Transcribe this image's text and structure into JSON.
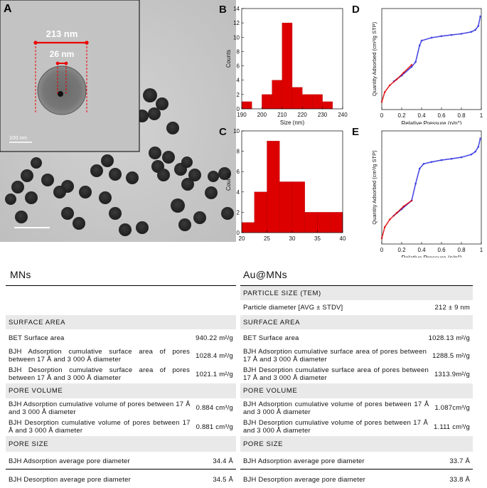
{
  "panels": {
    "A": "A",
    "B": "B",
    "C": "C",
    "D": "D",
    "E": "E"
  },
  "tem": {
    "outer_diameter": "213 nm",
    "inner_diameter": "26 nm",
    "scale_label": "100  nm"
  },
  "chart_data": [
    {
      "type": "bar",
      "panel": "B",
      "xlabel": "Size (nm)",
      "ylabel": "Counts",
      "xlim": [
        190,
        240
      ],
      "ylim": [
        0,
        14
      ],
      "xticks": [
        "190",
        "200",
        "210",
        "220",
        "230",
        "240"
      ],
      "yticks": [
        "0",
        "2",
        "4",
        "6",
        "8",
        "10",
        "12",
        "14"
      ],
      "bins": [
        [
          190,
          195
        ],
        [
          200,
          205
        ],
        [
          205,
          210
        ],
        [
          210,
          215
        ],
        [
          215,
          220
        ],
        [
          220,
          225
        ],
        [
          225,
          230
        ],
        [
          230,
          235
        ]
      ],
      "values": [
        1,
        2,
        4,
        12,
        3,
        2,
        2,
        1
      ],
      "color": "#dd0000"
    },
    {
      "type": "bar",
      "panel": "C",
      "xlabel": "Size (nm)",
      "ylabel": "Counts",
      "xlim": [
        20,
        40
      ],
      "ylim": [
        0,
        10
      ],
      "xticks": [
        "20",
        "25",
        "30",
        "35",
        "40"
      ],
      "yticks": [
        "0",
        "2",
        "4",
        "6",
        "8",
        "10"
      ],
      "bins": [
        [
          20,
          22.5
        ],
        [
          22.5,
          25
        ],
        [
          25,
          27.5
        ],
        [
          27.5,
          30
        ],
        [
          30,
          32.5
        ],
        [
          32.5,
          35
        ],
        [
          35,
          37.5
        ],
        [
          37.5,
          40
        ]
      ],
      "values": [
        1,
        4,
        9,
        5,
        5,
        2,
        2,
        2
      ],
      "color": "#dd0000"
    },
    {
      "type": "line",
      "panel": "D",
      "xlabel": "Relative Pressure (p/p°)",
      "ylabel": "Quantity Adsorbed (cm³/g STP)",
      "xlim": [
        0,
        1
      ],
      "xticks": [
        "0",
        "0.2",
        "0.4",
        "0.6",
        "0.8",
        "1"
      ],
      "series": [
        {
          "color": "#dd0000",
          "x": [
            0,
            0.03,
            0.08,
            0.15,
            0.22,
            0.3
          ],
          "y": [
            140,
            190,
            225,
            255,
            290,
            330
          ]
        },
        {
          "color": "#2b2bdd",
          "x": [
            0.12,
            0.2,
            0.3,
            0.34,
            0.38,
            0.4,
            0.5,
            0.6,
            0.7,
            0.8,
            0.9,
            0.94,
            0.97,
            0.99
          ],
          "y": [
            245,
            275,
            320,
            345,
            430,
            455,
            470,
            478,
            484,
            490,
            500,
            510,
            530,
            580
          ]
        }
      ],
      "ylim": [
        100,
        620
      ]
    },
    {
      "type": "line",
      "panel": "E",
      "xlabel": "Relative Pressure (p/p°)",
      "ylabel": "Quantity Adsorbed (cm³/g STP)",
      "xlim": [
        0,
        1
      ],
      "xticks": [
        "0",
        "0.2",
        "0.4",
        "0.6",
        "0.8",
        "1"
      ],
      "series": [
        {
          "color": "#dd0000",
          "x": [
            0,
            0.03,
            0.08,
            0.15,
            0.22,
            0.3
          ],
          "y": [
            130,
            190,
            230,
            265,
            300,
            330
          ]
        },
        {
          "color": "#2b2bdd",
          "x": [
            0.12,
            0.2,
            0.3,
            0.34,
            0.38,
            0.42,
            0.5,
            0.6,
            0.7,
            0.8,
            0.9,
            0.94,
            0.97,
            0.99
          ],
          "y": [
            250,
            285,
            330,
            420,
            500,
            525,
            535,
            545,
            552,
            560,
            575,
            590,
            615,
            660
          ]
        }
      ],
      "ylim": [
        100,
        700
      ]
    }
  ],
  "tables": {
    "left": {
      "title": "MNs",
      "surface_area": "SURFACE AREA",
      "bet_label": "BET Surface area",
      "bet_value": "940.22 m²/g",
      "bjh_ads_sa_label": "BJH Adsorption cumulative surface area of pores between 17 Å and 3 000 Å diameter",
      "bjh_ads_sa_value": "1028.4 m²/g",
      "bjh_des_sa_label": "BJH Desorption cumulative surface area of pores between 17 Å and 3 000 Å diameter",
      "bjh_des_sa_value": "1021.1 m²/g",
      "pore_volume": "PORE VOLUME",
      "bjh_ads_pv_label": "BJH Adsorption cumulative volume of pores between 17 Å and 3 000 Å diameter",
      "bjh_ads_pv_value": "0.884 cm³/g",
      "bjh_des_pv_label": "BJH Desorption cumulative volume of pores between 17 Å and 3 000 Å diameter",
      "bjh_des_pv_value": "0.881 cm³/g",
      "pore_size": "PORE SIZE",
      "ads_pd_label": "BJH Adsorption average pore diameter",
      "ads_pd_value": "34.4 Å",
      "des_pd_label": "BJH Desorption average pore diameter",
      "des_pd_value": "34.5 Å"
    },
    "right": {
      "title": "Au@MNs",
      "particle_size": "PARTICLE SIZE (TEM)",
      "pd_label": "Particle diameter [AVG ± STDV]",
      "pd_value": "212 ± 9 nm",
      "surface_area": "SURFACE AREA",
      "bet_label": "BET Surface area",
      "bet_value": "1028.13 m²/g",
      "bjh_ads_sa_label": "BJH Adsorption cumulative surface area of pores between 17 Å and 3 000 Å diameter",
      "bjh_ads_sa_value": "1288.5 m²/g",
      "bjh_des_sa_label": "BJH Desorption cumulative surface area of pores between 17 Å and 3 000 Å diameter",
      "bjh_des_sa_value": "1313.9m²/g",
      "pore_volume": "PORE VOLUME",
      "bjh_ads_pv_label": "BJH Adsorption cumulative volume of pores between 17 Å and 3 000 Å diameter",
      "bjh_ads_pv_value": "1.087cm³/g",
      "bjh_des_pv_label": "BJH Desorption cumulative volume of pores between 17 Å and 3 000 Å diameter",
      "bjh_des_pv_value": "1.111 cm³/g",
      "pore_size": "PORE SIZE",
      "ads_pd_label": "BJH Adsorption average pore diameter",
      "ads_pd_value": "33.7 Å",
      "des_pd_label": "BJH Desorption average pore diameter",
      "des_pd_value": "33.8 Å"
    }
  }
}
